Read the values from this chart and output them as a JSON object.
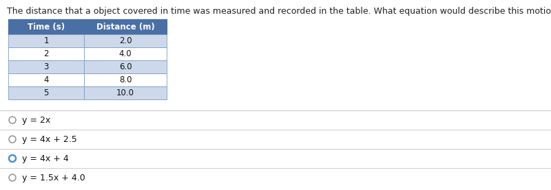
{
  "question_text": "The distance that a object covered in time was measured and recorded in the table. What equation would describe this motion?",
  "table_header": [
    "Time (s)",
    "Distance (m)"
  ],
  "table_rows": [
    [
      "1",
      "2.0"
    ],
    [
      "2",
      "4.0"
    ],
    [
      "3",
      "6.0"
    ],
    [
      "4",
      "8.0"
    ],
    [
      "5",
      "10.0"
    ]
  ],
  "header_bg": "#4a6fa5",
  "header_text_color": "#ffffff",
  "row_bg_odd": "#ffffff",
  "row_bg_even": "#cdd9ea",
  "table_border_color": "#4a6fa5",
  "cell_border_color": "#7a9bbf",
  "options": [
    "y = 2x",
    "y = 4x + 2.5",
    "y = 4x + 4",
    "y = 1.5x + 4.0"
  ],
  "selected_option_index": 2,
  "selected_circle_color": "#4a90d9",
  "unselected_circle_color": "#888888",
  "option_text_color": "#111111",
  "question_font_size": 9.0,
  "option_font_size": 9.0,
  "table_font_size": 8.5,
  "background_color": "#ffffff",
  "divider_color": "#cccccc",
  "fig_width": 8.0,
  "fig_height": 2.77,
  "dpi": 100
}
